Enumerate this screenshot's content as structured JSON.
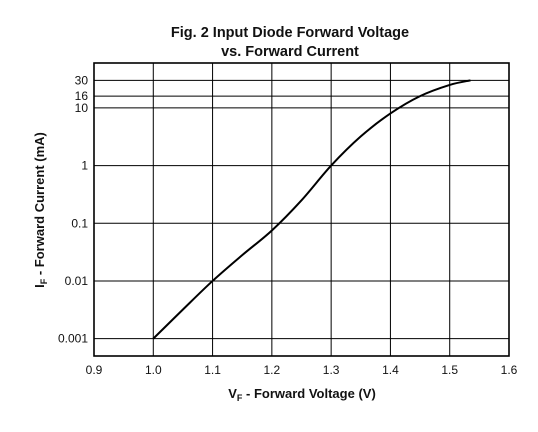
{
  "chart_data": {
    "type": "line",
    "title_line1": "Fig. 2  Input Diode Forward Voltage",
    "title_line2": "vs. Forward Current",
    "xlabel_main": "V",
    "xlabel_sub": "F",
    "xlabel_rest": " - Forward Voltage (V)",
    "ylabel_main": "I",
    "ylabel_sub": "F",
    "ylabel_rest": " - Forward Current (mA)",
    "x_scale": "linear",
    "y_scale": "log",
    "xlim": [
      0.9,
      1.6
    ],
    "ylim": [
      0.0005,
      60
    ],
    "x_ticks": [
      0.9,
      1.0,
      1.1,
      1.2,
      1.3,
      1.4,
      1.5,
      1.6
    ],
    "x_tick_labels": [
      "0.9",
      "1.0",
      "1.1",
      "1.2",
      "1.3",
      "1.4",
      "1.5",
      "1.6"
    ],
    "y_ticks": [
      0.001,
      0.01,
      0.1,
      1,
      10,
      16,
      30
    ],
    "y_tick_labels": [
      "0.001",
      "0.01",
      "0.1",
      "1",
      "10",
      "16",
      "30"
    ],
    "grid": true,
    "series": [
      {
        "x": [
          1.0,
          1.05,
          1.1,
          1.15,
          1.2,
          1.25,
          1.3,
          1.35,
          1.4,
          1.45,
          1.5,
          1.535
        ],
        "y": [
          0.001,
          0.0032,
          0.01,
          0.028,
          0.075,
          0.25,
          1.0,
          3.2,
          8.0,
          16.0,
          25.0,
          30.0
        ]
      }
    ]
  }
}
